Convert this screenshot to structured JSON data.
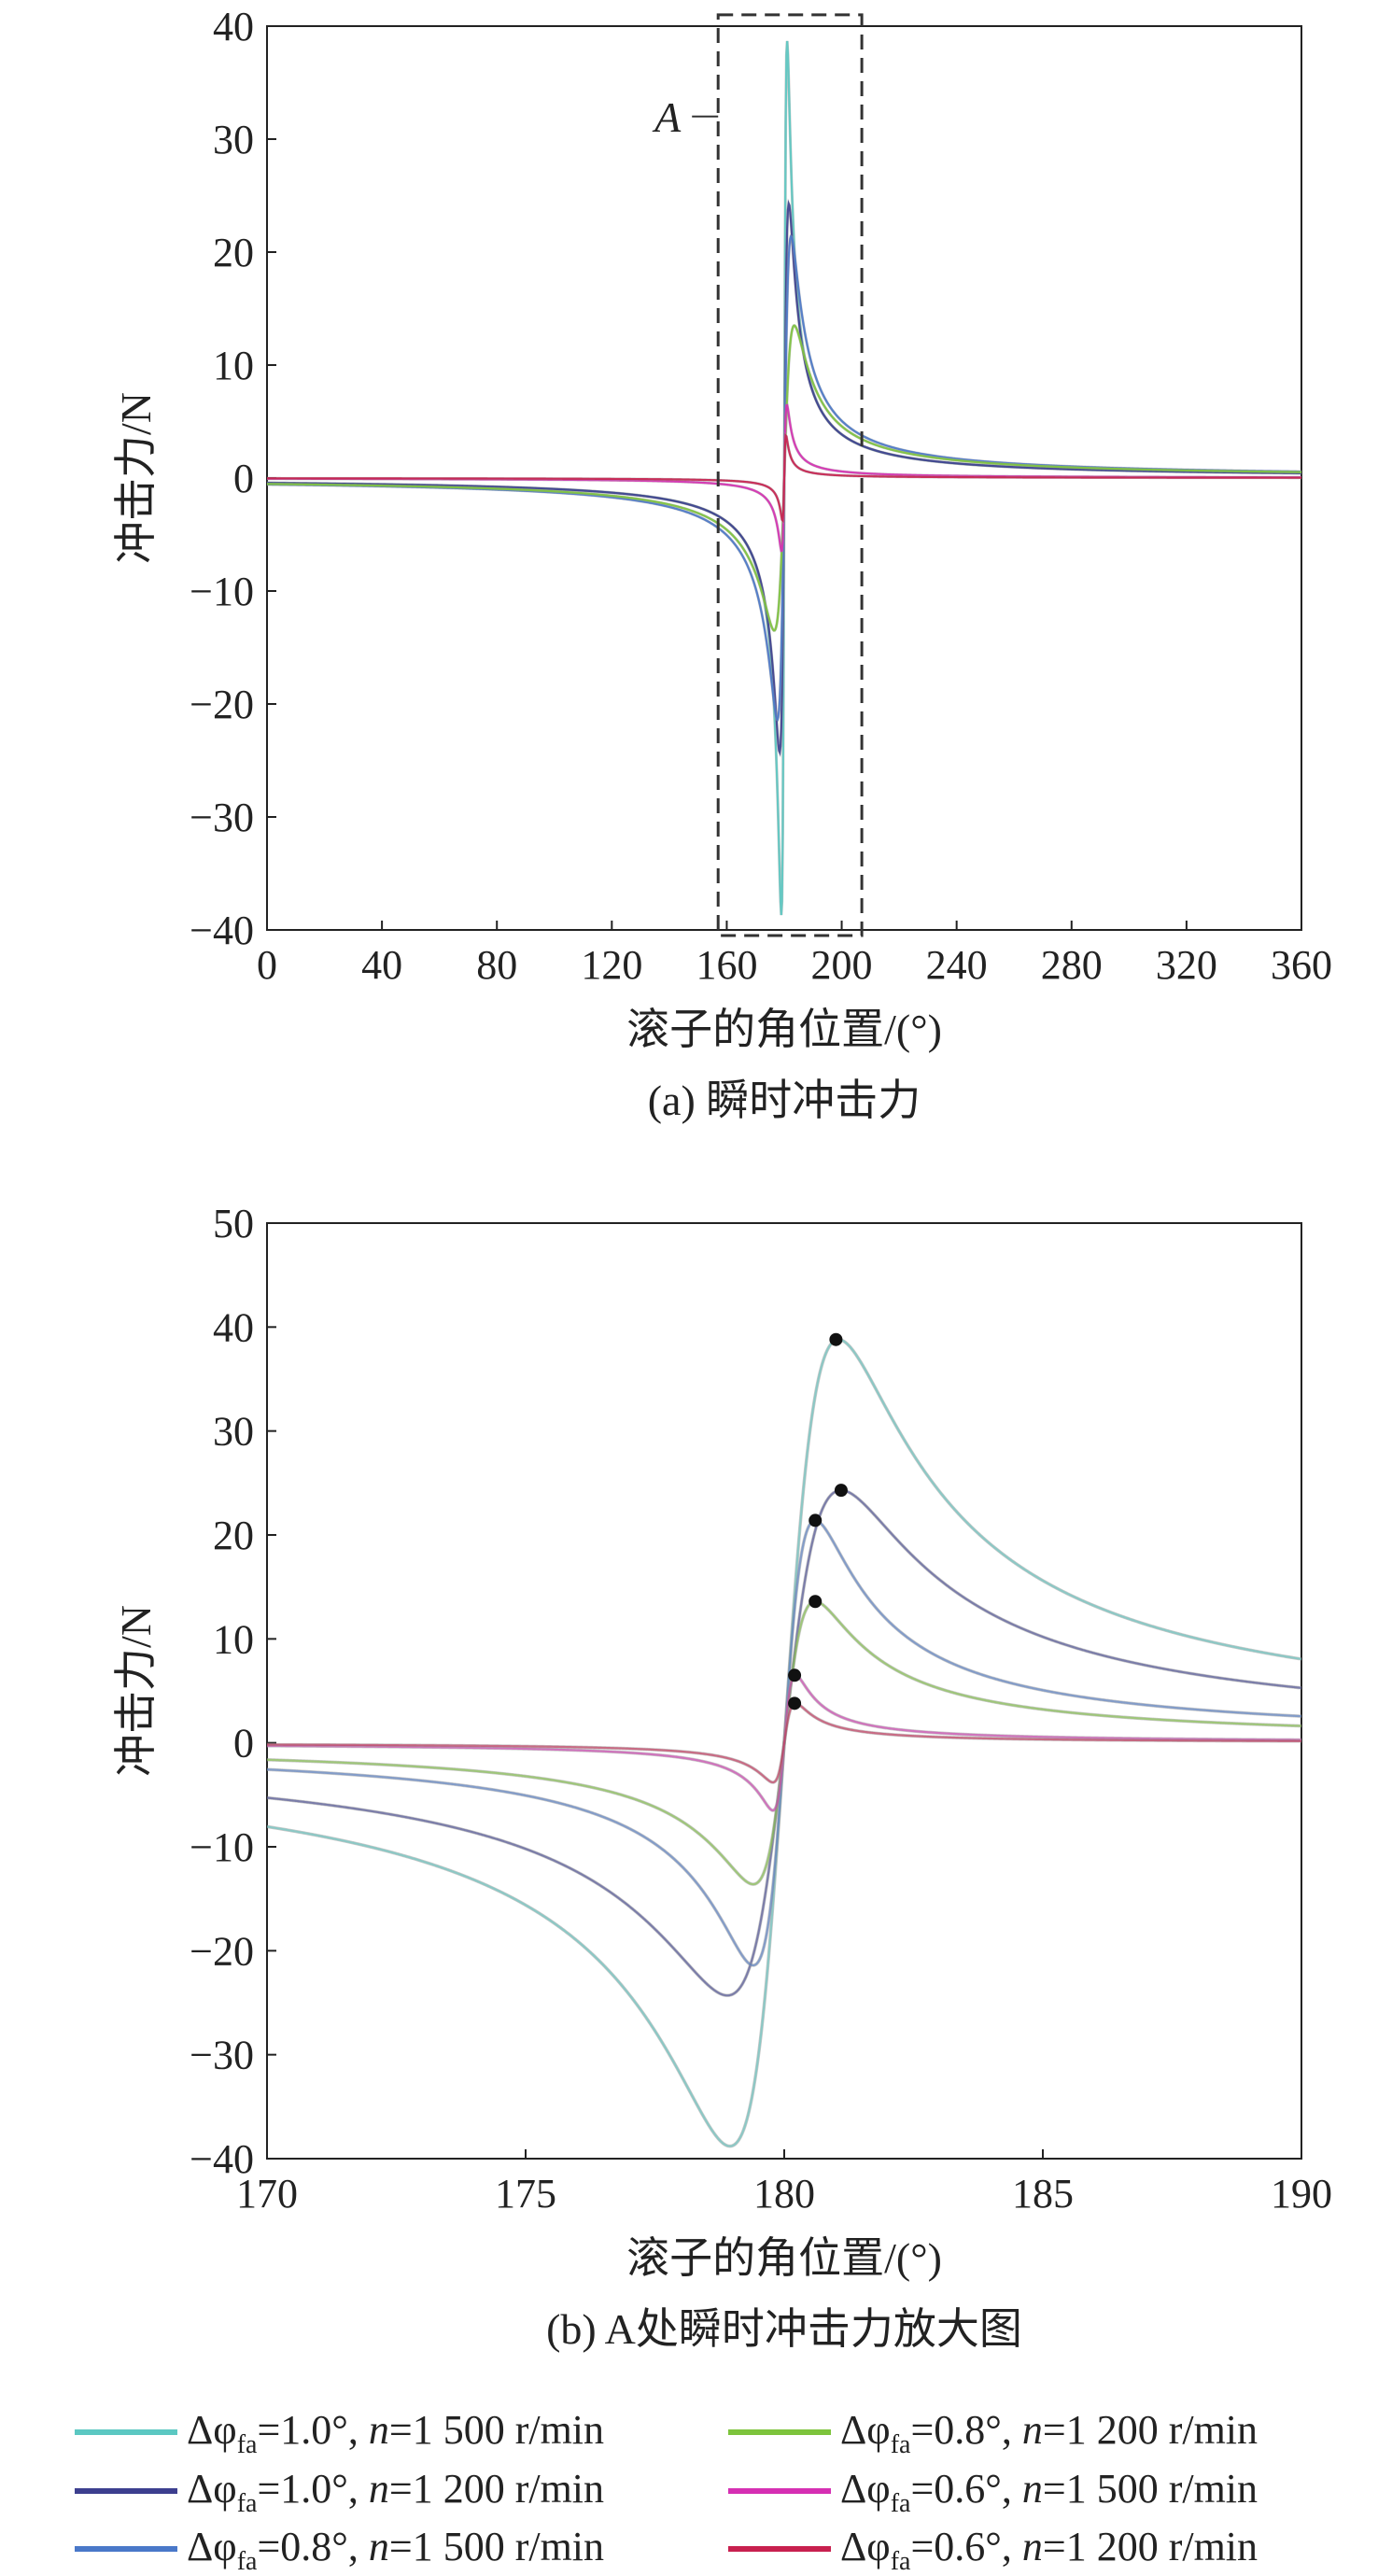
{
  "chart_data": [
    {
      "type": "line",
      "panel": "a",
      "caption": "(a) 瞬时冲击力",
      "xlabel": "滚子的角位置/(°)",
      "ylabel": "冲击力/N",
      "xlim": [
        0,
        360
      ],
      "ylim": [
        -40,
        40
      ],
      "xticks": [
        0,
        40,
        80,
        120,
        160,
        200,
        240,
        280,
        320,
        360
      ],
      "yticks": [
        -40,
        -30,
        -20,
        -10,
        0,
        10,
        20,
        30,
        40
      ],
      "annotation": {
        "text": "A",
        "box_x": [
          157,
          207
        ],
        "box_y": [
          -40.5,
          41
        ]
      },
      "series": [
        {
          "name": "Δφfa=1.0°, n=1 500 r/min",
          "color": "#5bc8c2",
          "peak": 38.7
        },
        {
          "name": "Δφfa=1.0°, n=1 200 r/min",
          "color": "#3d3f8f",
          "peak": 24.3
        },
        {
          "name": "Δφfa=0.8°, n=1 500 r/min",
          "color": "#4a78c9",
          "peak": 21.4
        },
        {
          "name": "Δφfa=0.8°, n=1 200 r/min",
          "color": "#7dc43c",
          "peak": 13.5
        },
        {
          "name": "Δφfa=0.6°, n=1 500 r/min",
          "color": "#d62fb3",
          "peak": 6.5
        },
        {
          "name": "Δφfa=0.6°, n=1 200 r/min",
          "color": "#c8204f",
          "peak": 3.8
        }
      ]
    },
    {
      "type": "line",
      "panel": "b",
      "caption": "(b) A处瞬时冲击力放大图",
      "xlabel": "滚子的角位置/(°)",
      "ylabel": "冲击力/N",
      "xlim": [
        170,
        190
      ],
      "ylim": [
        -40,
        50
      ],
      "xticks": [
        170,
        175,
        180,
        185,
        190
      ],
      "yticks": [
        -40,
        -30,
        -20,
        -10,
        0,
        10,
        20,
        30,
        40,
        50
      ],
      "peak_markers": [
        {
          "x": 181.0,
          "y": 38.8
        },
        {
          "x": 181.1,
          "y": 24.3
        },
        {
          "x": 180.6,
          "y": 21.4
        },
        {
          "x": 180.6,
          "y": 13.6
        },
        {
          "x": 180.2,
          "y": 6.5
        },
        {
          "x": 180.2,
          "y": 3.8
        }
      ],
      "series": [
        {
          "name": "Δφfa=1.0°, n=1 500 r/min",
          "color": "#5bc8c2",
          "peak": 38.8,
          "trough": -38.8,
          "trough_x": 178.9
        },
        {
          "name": "Δφfa=1.0°, n=1 200 r/min",
          "color": "#3d3f8f",
          "peak": 24.3,
          "trough": -24.3,
          "trough_x": 178.9
        },
        {
          "name": "Δφfa=0.8°, n=1 500 r/min",
          "color": "#4a78c9",
          "peak": 21.4,
          "trough": -21.4,
          "trough_x": 179.4
        },
        {
          "name": "Δφfa=0.8°, n=1 200 r/min",
          "color": "#7dc43c",
          "peak": 13.6,
          "trough": -13.6,
          "trough_x": 179.4
        },
        {
          "name": "Δφfa=0.6°, n=1 500 r/min",
          "color": "#d62fb3",
          "peak": 6.5,
          "trough": -6.5,
          "trough_x": 179.8
        },
        {
          "name": "Δφfa=0.6°, n=1 200 r/min",
          "color": "#c8204f",
          "peak": 3.8,
          "trough": -3.8,
          "trough_x": 179.8
        }
      ]
    }
  ],
  "legend": {
    "items": [
      {
        "delta": "Δφ",
        "sub": "fa",
        "value": "=1.0°, ",
        "n": "n",
        "speed": "=1 500 r/min",
        "color": "#5bc8c2"
      },
      {
        "delta": "Δφ",
        "sub": "fa",
        "value": "=1.0°, ",
        "n": "n",
        "speed": "=1 200 r/min",
        "color": "#3d3f8f"
      },
      {
        "delta": "Δφ",
        "sub": "fa",
        "value": "=0.8°, ",
        "n": "n",
        "speed": "=1 500 r/min",
        "color": "#4a78c9"
      },
      {
        "delta": "Δφ",
        "sub": "fa",
        "value": "=0.8°, ",
        "n": "n",
        "speed": "=1 200 r/min",
        "color": "#7dc43c"
      },
      {
        "delta": "Δφ",
        "sub": "fa",
        "value": "=0.6°, ",
        "n": "n",
        "speed": "=1 500 r/min",
        "color": "#d62fb3"
      },
      {
        "delta": "Δφ",
        "sub": "fa",
        "value": "=0.6°, ",
        "n": "n",
        "speed": "=1 200 r/min",
        "color": "#c8204f"
      }
    ]
  }
}
